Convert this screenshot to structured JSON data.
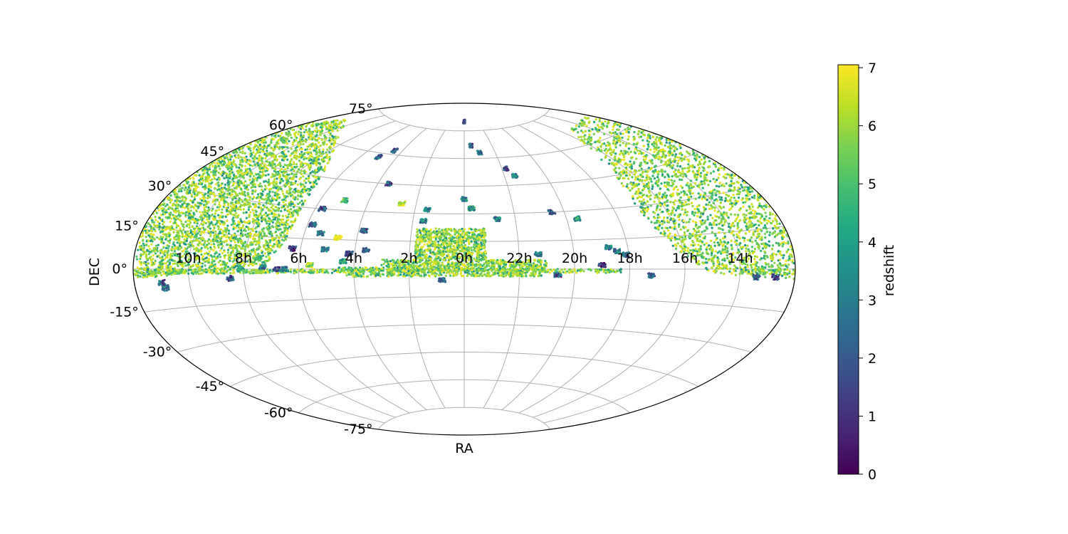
{
  "chart_data": {
    "type": "scatter",
    "projection": "aitoff",
    "xlabel": "RA",
    "ylabel": "DEC",
    "colorbar_label": "redshift",
    "colorbar_ticks": [
      "0",
      "1",
      "2",
      "3",
      "4",
      "5",
      "6",
      "7"
    ],
    "colorbar_range": [
      0,
      7.05
    ],
    "colormap": "viridis",
    "ra_tick_labels": [
      {
        "ra_hours": 14,
        "label": "14h"
      },
      {
        "ra_hours": 16,
        "label": "16h"
      },
      {
        "ra_hours": 18,
        "label": "18h"
      },
      {
        "ra_hours": 20,
        "label": "20h"
      },
      {
        "ra_hours": 22,
        "label": "22h"
      },
      {
        "ra_hours": 0,
        "label": "0h"
      },
      {
        "ra_hours": 2,
        "label": "2h"
      },
      {
        "ra_hours": 4,
        "label": "4h"
      },
      {
        "ra_hours": 6,
        "label": "6h"
      },
      {
        "ra_hours": 8,
        "label": "8h"
      },
      {
        "ra_hours": 10,
        "label": "10h"
      }
    ],
    "dec_tick_labels": [
      {
        "dec": 75,
        "label": "75°"
      },
      {
        "dec": 60,
        "label": "60°"
      },
      {
        "dec": 45,
        "label": "45°"
      },
      {
        "dec": 30,
        "label": "30°"
      },
      {
        "dec": 15,
        "label": "15°"
      },
      {
        "dec": 0,
        "label": "0°"
      },
      {
        "dec": -15,
        "label": "-15°"
      },
      {
        "dec": -30,
        "label": "-30°"
      },
      {
        "dec": -45,
        "label": "-45°"
      },
      {
        "dec": -60,
        "label": "-60°"
      },
      {
        "dec": -75,
        "label": "-75°"
      }
    ],
    "grid": true,
    "regions": [
      {
        "ra_range": [
          18.3,
          14.0
        ],
        "dec_range": [
          -2,
          0
        ],
        "z_range": [
          3,
          7
        ]
      },
      {
        "ra_range": [
          23.2,
          1.8
        ],
        "dec_range": [
          5,
          22
        ],
        "z_range": [
          3,
          7
        ]
      },
      {
        "ra_range": [
          22.6,
          3.0
        ],
        "dec_range": [
          -1,
          5
        ],
        "z_range": [
          3,
          7
        ]
      },
      {
        "ra_range": [
          21.0,
          22.6
        ],
        "dec_range": [
          -1,
          5
        ],
        "z_range": [
          3,
          7
        ]
      },
      {
        "ra_range": [
          3.0,
          4.6
        ],
        "dec_range": [
          -1,
          1
        ],
        "z_range": [
          3,
          7
        ]
      },
      {
        "ra_range": [
          21.2,
          4.3
        ],
        "dec_range": [
          -4,
          -2
        ],
        "z_range": [
          3,
          7
        ]
      }
    ],
    "fields": [
      {
        "ra": 0.0,
        "dec": 80,
        "z": 2
      },
      {
        "ra": 23.5,
        "dec": 67,
        "z": 2
      },
      {
        "ra": 23.0,
        "dec": 63,
        "z": 3
      },
      {
        "ra": 21.8,
        "dec": 54,
        "z": 2
      },
      {
        "ra": 21.5,
        "dec": 50,
        "z": 3
      },
      {
        "ra": 20.5,
        "dec": 30,
        "z": 2
      },
      {
        "ra": 19.6,
        "dec": 26,
        "z": 4
      },
      {
        "ra": 18.7,
        "dec": 11,
        "z": 3
      },
      {
        "ra": 18.4,
        "dec": 9,
        "z": 3
      },
      {
        "ra": 18.1,
        "dec": 7,
        "z": 2
      },
      {
        "ra": 19.0,
        "dec": 2,
        "z": 1
      },
      {
        "ra": 17.2,
        "dec": -3,
        "z": 2
      },
      {
        "ra": 13.4,
        "dec": -3,
        "z": 2
      },
      {
        "ra": 12.7,
        "dec": -3,
        "z": 1
      },
      {
        "ra": 20.6,
        "dec": -3,
        "z": 2
      },
      {
        "ra": 0.8,
        "dec": -6,
        "z": 2
      },
      {
        "ra": 1.5,
        "dec": 32,
        "z": 3
      },
      {
        "ra": 2.6,
        "dec": 35,
        "z": 7
      },
      {
        "ra": 3.5,
        "dec": 45,
        "z": 2
      },
      {
        "ra": 4.5,
        "dec": 62,
        "z": 2
      },
      {
        "ra": 5.0,
        "dec": 58,
        "z": 2
      },
      {
        "ra": 0.0,
        "dec": 38,
        "z": 3
      },
      {
        "ra": 23.7,
        "dec": 33,
        "z": 4
      },
      {
        "ra": 22.7,
        "dec": 27,
        "z": 3
      },
      {
        "ra": 21.3,
        "dec": 8,
        "z": 3
      },
      {
        "ra": 1.6,
        "dec": 26,
        "z": 3
      },
      {
        "ra": 3.8,
        "dec": 20,
        "z": 2
      },
      {
        "ra": 3.6,
        "dec": 10,
        "z": 2
      },
      {
        "ra": 4.2,
        "dec": 8,
        "z": 2
      },
      {
        "ra": 4.7,
        "dec": 16,
        "z": 7
      },
      {
        "ra": 5.1,
        "dec": 10,
        "z": 3
      },
      {
        "ra": 4.4,
        "dec": 4,
        "z": 4
      },
      {
        "ra": 5.4,
        "dec": 18,
        "z": 3
      },
      {
        "ra": 5.8,
        "dec": 22,
        "z": 2
      },
      {
        "ra": 5.6,
        "dec": 2,
        "z": 6
      },
      {
        "ra": 6.3,
        "dec": 10,
        "z": 1
      },
      {
        "ra": 6.5,
        "dec": 0,
        "z": 3
      },
      {
        "ra": 6.8,
        "dec": 0,
        "z": 2
      },
      {
        "ra": 7.3,
        "dec": 1,
        "z": 3
      },
      {
        "ra": 8.1,
        "dec": 0,
        "z": 4
      },
      {
        "ra": 7.5,
        "dec": 5,
        "z": 5
      },
      {
        "ra": 8.5,
        "dec": -4,
        "z": 2
      },
      {
        "ra": 10.9,
        "dec": -7,
        "z": 3
      },
      {
        "ra": 11.0,
        "dec": -5,
        "z": 2
      },
      {
        "ra": 5.0,
        "dec": 35,
        "z": 5
      },
      {
        "ra": 5.7,
        "dec": 30,
        "z": 2
      }
    ]
  }
}
